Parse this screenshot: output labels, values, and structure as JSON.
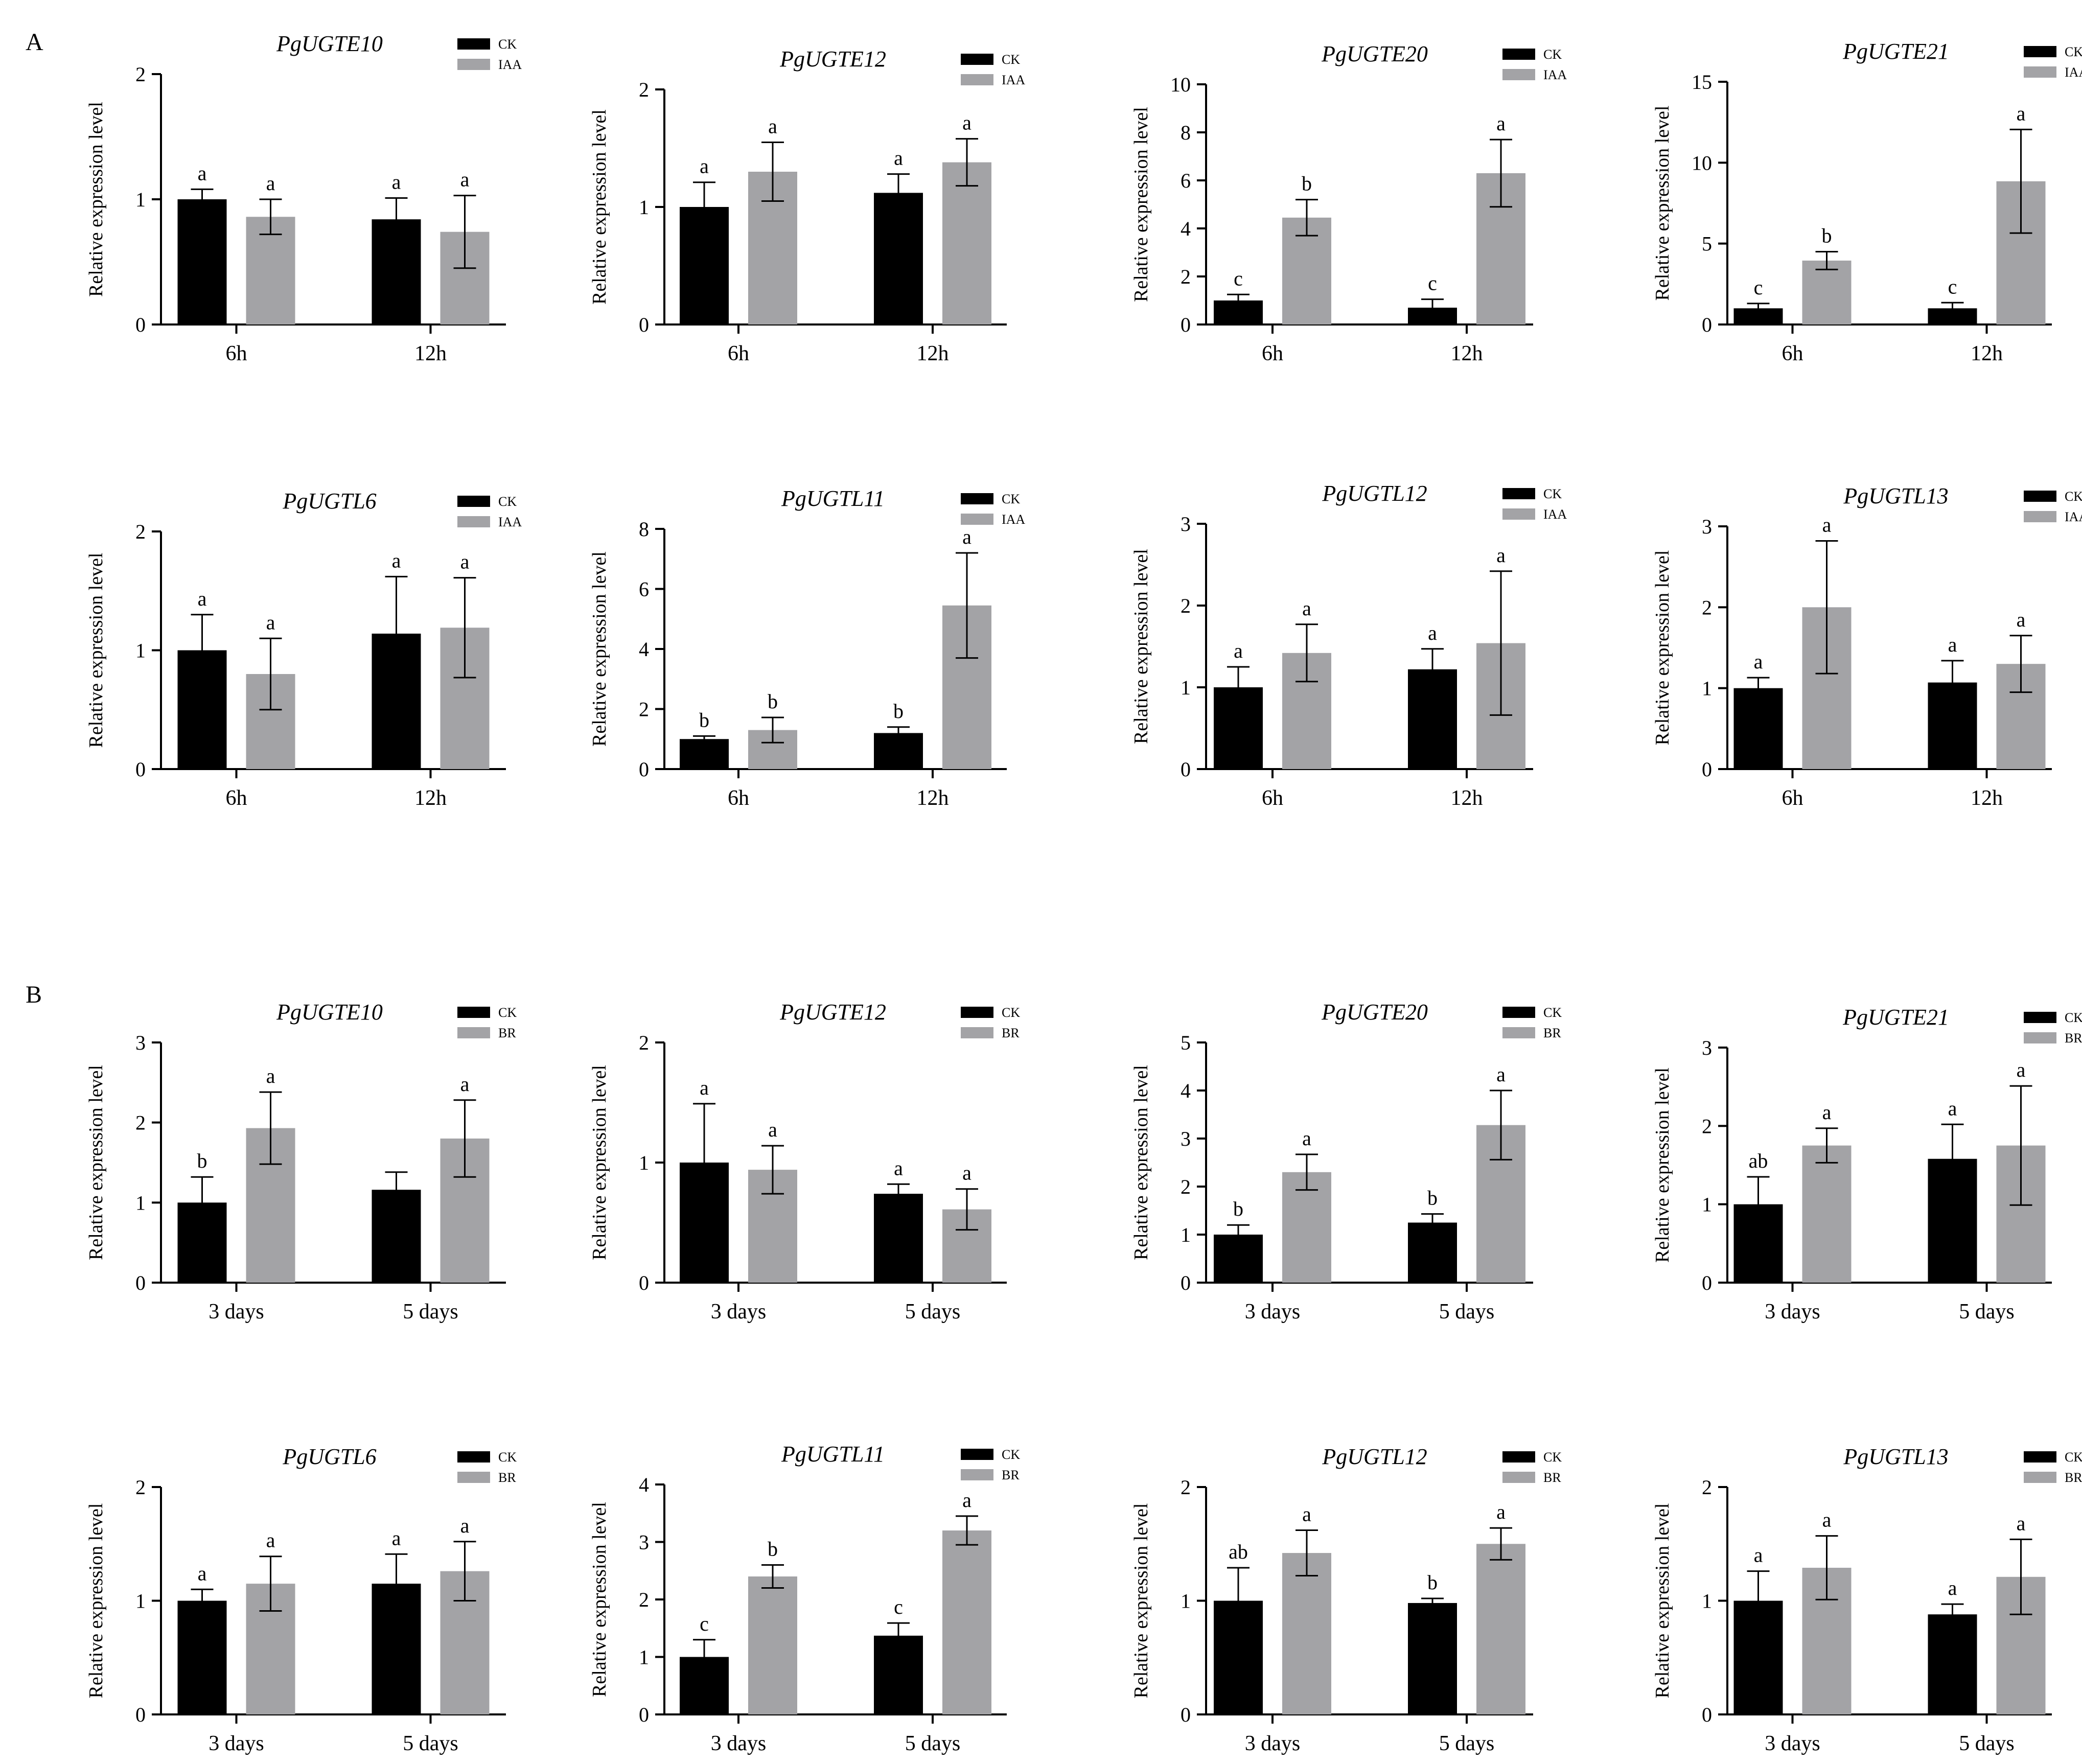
{
  "panels": [
    {
      "label": "A"
    },
    {
      "label": "B"
    }
  ],
  "chart_data": [
    {
      "type": "bar",
      "panel": "A",
      "title": "PgUGTE10",
      "ylabel": "Relative expression level",
      "ylim": [
        0,
        2
      ],
      "yticks": [
        0,
        1,
        2
      ],
      "categories": [
        "6h",
        "12h"
      ],
      "series": [
        {
          "name": "CK",
          "color": "#000000",
          "values": [
            1.0,
            0.84
          ],
          "errors": [
            0.08,
            0.17
          ],
          "labels": [
            "a",
            "a"
          ]
        },
        {
          "name": "IAA",
          "color": "#a3a3a6",
          "values": [
            0.86,
            0.74
          ],
          "errors": [
            0.14,
            0.29
          ],
          "labels": [
            "a",
            "a"
          ]
        }
      ]
    },
    {
      "type": "bar",
      "panel": "A",
      "title": "PgUGTE12",
      "ylabel": "Relative expression level",
      "ylim": [
        0,
        2
      ],
      "yticks": [
        0,
        1,
        2
      ],
      "categories": [
        "6h",
        "12h"
      ],
      "series": [
        {
          "name": "CK",
          "color": "#000000",
          "values": [
            1.0,
            1.12
          ],
          "errors": [
            0.21,
            0.16
          ],
          "labels": [
            "a",
            "a"
          ]
        },
        {
          "name": "IAA",
          "color": "#a3a3a6",
          "values": [
            1.3,
            1.38
          ],
          "errors": [
            0.25,
            0.2
          ],
          "labels": [
            "a",
            "a"
          ]
        }
      ]
    },
    {
      "type": "bar",
      "panel": "A",
      "title": "PgUGTE20",
      "ylabel": "Relative expression level",
      "ylim": [
        0,
        10
      ],
      "yticks": [
        0,
        2,
        4,
        6,
        8,
        10
      ],
      "categories": [
        "6h",
        "12h"
      ],
      "series": [
        {
          "name": "CK",
          "color": "#000000",
          "values": [
            1.0,
            0.7
          ],
          "errors": [
            0.25,
            0.35
          ],
          "labels": [
            "c",
            "c"
          ]
        },
        {
          "name": "IAA",
          "color": "#a3a3a6",
          "values": [
            4.45,
            6.3
          ],
          "errors": [
            0.75,
            1.4
          ],
          "labels": [
            "b",
            "a"
          ]
        }
      ]
    },
    {
      "type": "bar",
      "panel": "A",
      "title": "PgUGTE21",
      "ylabel": "Relative expression level",
      "ylim": [
        0,
        15
      ],
      "yticks": [
        0,
        5,
        10,
        15
      ],
      "categories": [
        "6h",
        "12h"
      ],
      "series": [
        {
          "name": "CK",
          "color": "#000000",
          "values": [
            1.0,
            1.0
          ],
          "errors": [
            0.3,
            0.35
          ],
          "labels": [
            "c",
            "c"
          ]
        },
        {
          "name": "IAA",
          "color": "#a3a3a6",
          "values": [
            3.95,
            8.85
          ],
          "errors": [
            0.55,
            3.2
          ],
          "labels": [
            "b",
            "a"
          ]
        }
      ]
    },
    {
      "type": "bar",
      "panel": "A",
      "title": "PgUGTL6",
      "ylabel": "Relative expression level",
      "ylim": [
        0,
        2
      ],
      "yticks": [
        0,
        1,
        2
      ],
      "categories": [
        "6h",
        "12h"
      ],
      "series": [
        {
          "name": "CK",
          "color": "#000000",
          "values": [
            1.0,
            1.14
          ],
          "errors": [
            0.3,
            0.48
          ],
          "labels": [
            "a",
            "a"
          ]
        },
        {
          "name": "IAA",
          "color": "#a3a3a6",
          "values": [
            0.8,
            1.19
          ],
          "errors": [
            0.3,
            0.42
          ],
          "labels": [
            "a",
            "a"
          ]
        }
      ]
    },
    {
      "type": "bar",
      "panel": "A",
      "title": "PgUGTL11",
      "ylabel": "Relative expression level",
      "ylim": [
        0,
        8
      ],
      "yticks": [
        0,
        2,
        4,
        6,
        8
      ],
      "categories": [
        "6h",
        "12h"
      ],
      "series": [
        {
          "name": "CK",
          "color": "#000000",
          "values": [
            1.0,
            1.2
          ],
          "errors": [
            0.1,
            0.2
          ],
          "labels": [
            "b",
            "b"
          ]
        },
        {
          "name": "IAA",
          "color": "#a3a3a6",
          "values": [
            1.3,
            5.45
          ],
          "errors": [
            0.42,
            1.75
          ],
          "labels": [
            "b",
            "a"
          ]
        }
      ]
    },
    {
      "type": "bar",
      "panel": "A",
      "title": "PgUGTL12",
      "ylabel": "Relative expression level",
      "ylim": [
        0,
        3
      ],
      "yticks": [
        0,
        1,
        2,
        3
      ],
      "categories": [
        "6h",
        "12h"
      ],
      "series": [
        {
          "name": "CK",
          "color": "#000000",
          "values": [
            1.0,
            1.22
          ],
          "errors": [
            0.25,
            0.25
          ],
          "labels": [
            "a",
            "a"
          ]
        },
        {
          "name": "IAA",
          "color": "#a3a3a6",
          "values": [
            1.42,
            1.54
          ],
          "errors": [
            0.35,
            0.88
          ],
          "labels": [
            "a",
            "a"
          ]
        }
      ]
    },
    {
      "type": "bar",
      "panel": "A",
      "title": "PgUGTL13",
      "ylabel": "Relative expression level",
      "ylim": [
        0,
        3
      ],
      "yticks": [
        0,
        1,
        2,
        3
      ],
      "categories": [
        "6h",
        "12h"
      ],
      "series": [
        {
          "name": "CK",
          "color": "#000000",
          "values": [
            1.0,
            1.07
          ],
          "errors": [
            0.13,
            0.27
          ],
          "labels": [
            "a",
            "a"
          ]
        },
        {
          "name": "IAA",
          "color": "#a3a3a6",
          "values": [
            2.0,
            1.3
          ],
          "errors": [
            0.82,
            0.35
          ],
          "labels": [
            "a",
            "a"
          ]
        }
      ]
    },
    {
      "type": "bar",
      "panel": "B",
      "title": "PgUGTE10",
      "ylabel": "Relative expression level",
      "ylim": [
        0,
        3
      ],
      "yticks": [
        0,
        1,
        2,
        3
      ],
      "categories": [
        "3 days",
        "5 days"
      ],
      "series": [
        {
          "name": "CK",
          "color": "#000000",
          "values": [
            1.0,
            1.16
          ],
          "errors": [
            0.32,
            0.22
          ],
          "labels": [
            "b",
            ""
          ]
        },
        {
          "name": "BR",
          "color": "#a3a3a6",
          "values": [
            1.93,
            1.8
          ],
          "errors": [
            0.45,
            0.48
          ],
          "labels": [
            "a",
            "a"
          ]
        }
      ]
    },
    {
      "type": "bar",
      "panel": "B",
      "title": "PgUGTE12",
      "ylabel": "Relative expression level",
      "ylim": [
        0,
        2
      ],
      "yticks": [
        0,
        1,
        2
      ],
      "categories": [
        "3 days",
        "5 days"
      ],
      "series": [
        {
          "name": "CK",
          "color": "#000000",
          "values": [
            1.0,
            0.74
          ],
          "errors": [
            0.49,
            0.08
          ],
          "labels": [
            "a",
            "a"
          ]
        },
        {
          "name": "BR",
          "color": "#a3a3a6",
          "values": [
            0.94,
            0.61
          ],
          "errors": [
            0.2,
            0.17
          ],
          "labels": [
            "a",
            "a"
          ]
        }
      ]
    },
    {
      "type": "bar",
      "panel": "B",
      "title": "PgUGTE20",
      "ylabel": "Relative expression level",
      "ylim": [
        0,
        5
      ],
      "yticks": [
        0,
        1,
        2,
        3,
        4,
        5
      ],
      "categories": [
        "3 days",
        "5 days"
      ],
      "series": [
        {
          "name": "CK",
          "color": "#000000",
          "values": [
            1.0,
            1.25
          ],
          "errors": [
            0.2,
            0.18
          ],
          "labels": [
            "b",
            "b"
          ]
        },
        {
          "name": "BR",
          "color": "#a3a3a6",
          "values": [
            2.3,
            3.28
          ],
          "errors": [
            0.37,
            0.72
          ],
          "labels": [
            "a",
            "a"
          ]
        }
      ]
    },
    {
      "type": "bar",
      "panel": "B",
      "title": "PgUGTE21",
      "ylabel": "Relative expression level",
      "ylim": [
        0,
        3
      ],
      "yticks": [
        0,
        1,
        2,
        3
      ],
      "categories": [
        "3 days",
        "5 days"
      ],
      "series": [
        {
          "name": "CK",
          "color": "#000000",
          "values": [
            1.0,
            1.58
          ],
          "errors": [
            0.35,
            0.44
          ],
          "labels": [
            "ab",
            "a"
          ]
        },
        {
          "name": "BR",
          "color": "#a3a3a6",
          "values": [
            1.75,
            1.75
          ],
          "errors": [
            0.22,
            0.76
          ],
          "labels": [
            "a",
            "a"
          ]
        }
      ]
    },
    {
      "type": "bar",
      "panel": "B",
      "title": "PgUGTL6",
      "ylabel": "Relative expression level",
      "ylim": [
        0,
        2
      ],
      "yticks": [
        0,
        1,
        2
      ],
      "categories": [
        "3 days",
        "5 days"
      ],
      "series": [
        {
          "name": "CK",
          "color": "#000000",
          "values": [
            1.0,
            1.15
          ],
          "errors": [
            0.1,
            0.26
          ],
          "labels": [
            "a",
            "a"
          ]
        },
        {
          "name": "BR",
          "color": "#a3a3a6",
          "values": [
            1.15,
            1.26
          ],
          "errors": [
            0.24,
            0.26
          ],
          "labels": [
            "a",
            "a"
          ]
        }
      ]
    },
    {
      "type": "bar",
      "panel": "B",
      "title": "PgUGTL11",
      "ylabel": "Relative expression level",
      "ylim": [
        0,
        4
      ],
      "yticks": [
        0,
        1,
        2,
        3,
        4
      ],
      "categories": [
        "3 days",
        "5 days"
      ],
      "series": [
        {
          "name": "CK",
          "color": "#000000",
          "values": [
            1.0,
            1.37
          ],
          "errors": [
            0.3,
            0.22
          ],
          "labels": [
            "c",
            "c"
          ]
        },
        {
          "name": "BR",
          "color": "#a3a3a6",
          "values": [
            2.4,
            3.2
          ],
          "errors": [
            0.2,
            0.25
          ],
          "labels": [
            "b",
            "a"
          ]
        }
      ]
    },
    {
      "type": "bar",
      "panel": "B",
      "title": "PgUGTL12",
      "ylabel": "Relative expression level",
      "ylim": [
        0,
        2
      ],
      "yticks": [
        0,
        1,
        2
      ],
      "categories": [
        "3 days",
        "5 days"
      ],
      "series": [
        {
          "name": "CK",
          "color": "#000000",
          "values": [
            1.0,
            0.98
          ],
          "errors": [
            0.29,
            0.04
          ],
          "labels": [
            "ab",
            "b"
          ]
        },
        {
          "name": "BR",
          "color": "#a3a3a6",
          "values": [
            1.42,
            1.5
          ],
          "errors": [
            0.2,
            0.14
          ],
          "labels": [
            "a",
            "a"
          ]
        }
      ]
    },
    {
      "type": "bar",
      "panel": "B",
      "title": "PgUGTL13",
      "ylabel": "Relative expression level",
      "ylim": [
        0,
        2
      ],
      "yticks": [
        0,
        1,
        2
      ],
      "categories": [
        "3 days",
        "5 days"
      ],
      "series": [
        {
          "name": "CK",
          "color": "#000000",
          "values": [
            1.0,
            0.88
          ],
          "errors": [
            0.26,
            0.09
          ],
          "labels": [
            "a",
            "a"
          ]
        },
        {
          "name": "BR",
          "color": "#a3a3a6",
          "values": [
            1.29,
            1.21
          ],
          "errors": [
            0.28,
            0.33
          ],
          "labels": [
            "a",
            "a"
          ]
        }
      ]
    }
  ]
}
